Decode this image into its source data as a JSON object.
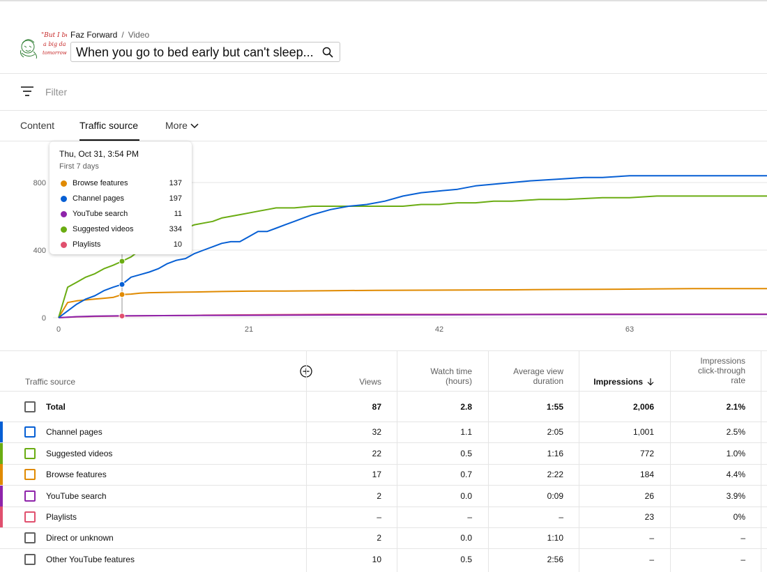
{
  "header": {
    "channel": "Faz Forward",
    "separator": "/",
    "section": "Video",
    "video_title": "When you go to bed early but can't sleep...",
    "avatar_handwriting": [
      "\"But I be",
      "a big da",
      "tomorrow"
    ]
  },
  "filter": {
    "placeholder": "Filter"
  },
  "tabs": [
    {
      "label": "Content",
      "active": false
    },
    {
      "label": "Traffic source",
      "active": true
    },
    {
      "label": "More",
      "active": false
    }
  ],
  "tooltip": {
    "date": "Thu, Oct 31, 3:54 PM",
    "subtitle": "First 7 days",
    "rows": [
      {
        "name": "Browse features",
        "value": "137",
        "color": "#e08a00"
      },
      {
        "name": "Channel pages",
        "value": "197",
        "color": "#065fd4"
      },
      {
        "name": "YouTube search",
        "value": "11",
        "color": "#8e24aa"
      },
      {
        "name": "Suggested videos",
        "value": "334",
        "color": "#6aac12"
      },
      {
        "name": "Playlists",
        "value": "10",
        "color": "#e0506e"
      }
    ]
  },
  "chart_data": {
    "type": "line",
    "title": "",
    "xlabel": "",
    "ylabel": "",
    "x_ticks": [
      "0",
      "21",
      "42",
      "63"
    ],
    "y_ticks": [
      "0",
      "400",
      "800"
    ],
    "xlim": [
      0,
      79
    ],
    "ylim": [
      0,
      1000
    ],
    "hover_x": 7,
    "grid": true,
    "series": [
      {
        "name": "Channel pages",
        "color": "#065fd4",
        "x": [
          0,
          1,
          2,
          3,
          4,
          5,
          6,
          7,
          8,
          9,
          10,
          11,
          12,
          13,
          14,
          15,
          16,
          17,
          18,
          19,
          20,
          21,
          22,
          23,
          24,
          25,
          26,
          27,
          28,
          30,
          32,
          34,
          36,
          38,
          40,
          42,
          44,
          46,
          48,
          50,
          52,
          55,
          58,
          60,
          63,
          66,
          68,
          70,
          73,
          76,
          79
        ],
        "y": [
          0,
          40,
          80,
          110,
          130,
          160,
          180,
          197,
          240,
          255,
          270,
          290,
          320,
          340,
          350,
          380,
          400,
          420,
          440,
          450,
          450,
          480,
          510,
          510,
          530,
          550,
          570,
          590,
          610,
          640,
          660,
          670,
          690,
          720,
          740,
          750,
          760,
          780,
          790,
          800,
          810,
          820,
          830,
          830,
          840,
          840,
          840,
          840,
          840,
          840,
          840
        ]
      },
      {
        "name": "Suggested videos",
        "color": "#6aac12",
        "x": [
          0,
          1,
          2,
          3,
          4,
          5,
          6,
          7,
          8,
          9,
          10,
          11,
          12,
          13,
          14,
          15,
          16,
          17,
          18,
          19,
          20,
          21,
          22,
          23,
          24,
          25,
          26,
          28,
          30,
          32,
          34,
          36,
          38,
          40,
          42,
          44,
          46,
          48,
          50,
          53,
          56,
          60,
          63,
          66,
          70,
          73,
          76,
          79
        ],
        "y": [
          0,
          180,
          210,
          240,
          260,
          290,
          310,
          334,
          360,
          400,
          430,
          470,
          500,
          520,
          530,
          550,
          560,
          570,
          590,
          600,
          610,
          620,
          630,
          640,
          650,
          650,
          650,
          660,
          660,
          660,
          660,
          660,
          660,
          670,
          670,
          680,
          680,
          690,
          690,
          700,
          700,
          710,
          710,
          720,
          720,
          720,
          720,
          720
        ]
      },
      {
        "name": "Browse features",
        "color": "#e08a00",
        "x": [
          0,
          1,
          2,
          3,
          4,
          5,
          6,
          7,
          8,
          9,
          10,
          12,
          15,
          18,
          21,
          25,
          30,
          35,
          40,
          45,
          50,
          55,
          60,
          65,
          70,
          75,
          79
        ],
        "y": [
          0,
          90,
          100,
          105,
          110,
          115,
          120,
          137,
          140,
          145,
          148,
          150,
          152,
          155,
          157,
          158,
          160,
          162,
          163,
          164,
          165,
          167,
          168,
          170,
          172,
          172,
          172
        ]
      },
      {
        "name": "YouTube search",
        "color": "#8e24aa",
        "x": [
          0,
          2,
          4,
          7,
          10,
          15,
          20,
          25,
          30,
          40,
          50,
          60,
          70,
          79
        ],
        "y": [
          0,
          6,
          9,
          11,
          12,
          13,
          14,
          15,
          16,
          17,
          18,
          19,
          20,
          20
        ]
      },
      {
        "name": "Playlists",
        "color": "#e0506e",
        "x": [
          0,
          2,
          4,
          7,
          10,
          15,
          16,
          25,
          30,
          40,
          50,
          60,
          70,
          79
        ],
        "y": [
          0,
          5,
          8,
          10,
          12,
          13,
          15,
          18,
          20,
          20,
          20,
          21,
          21,
          21
        ]
      }
    ]
  },
  "table": {
    "header_first": "Traffic source",
    "columns": [
      {
        "label": "Views",
        "lines": [
          "Views"
        ]
      },
      {
        "label": "Watch time (hours)",
        "lines": [
          "Watch time",
          "(hours)"
        ]
      },
      {
        "label": "Average view duration",
        "lines": [
          "Average view",
          "duration"
        ]
      },
      {
        "label": "Impressions",
        "lines": [
          "Impressions"
        ],
        "sorted": true
      },
      {
        "label": "Impressions click-through rate",
        "lines": [
          "Impressions",
          "click-through",
          "rate"
        ]
      }
    ],
    "rows": [
      {
        "name": "Total",
        "total": true,
        "color": "",
        "cells": [
          "87",
          "2.8",
          "1:55",
          "2,006",
          "2.1%"
        ]
      },
      {
        "name": "Channel pages",
        "color": "#065fd4",
        "cells": [
          "32",
          "1.1",
          "2:05",
          "1,001",
          "2.5%"
        ]
      },
      {
        "name": "Suggested videos",
        "color": "#6aac12",
        "cells": [
          "22",
          "0.5",
          "1:16",
          "772",
          "1.0%"
        ]
      },
      {
        "name": "Browse features",
        "color": "#e08a00",
        "cells": [
          "17",
          "0.7",
          "2:22",
          "184",
          "4.4%"
        ]
      },
      {
        "name": "YouTube search",
        "color": "#8e24aa",
        "cells": [
          "2",
          "0.0",
          "0:09",
          "26",
          "3.9%"
        ]
      },
      {
        "name": "Playlists",
        "color": "#e0506e",
        "cells": [
          "–",
          "–",
          "–",
          "23",
          "0%"
        ]
      },
      {
        "name": "Direct or unknown",
        "color": "",
        "cells": [
          "2",
          "0.0",
          "1:10",
          "–",
          "–"
        ]
      },
      {
        "name": "Other YouTube features",
        "color": "",
        "cells": [
          "10",
          "0.5",
          "2:56",
          "–",
          "–"
        ]
      }
    ]
  }
}
